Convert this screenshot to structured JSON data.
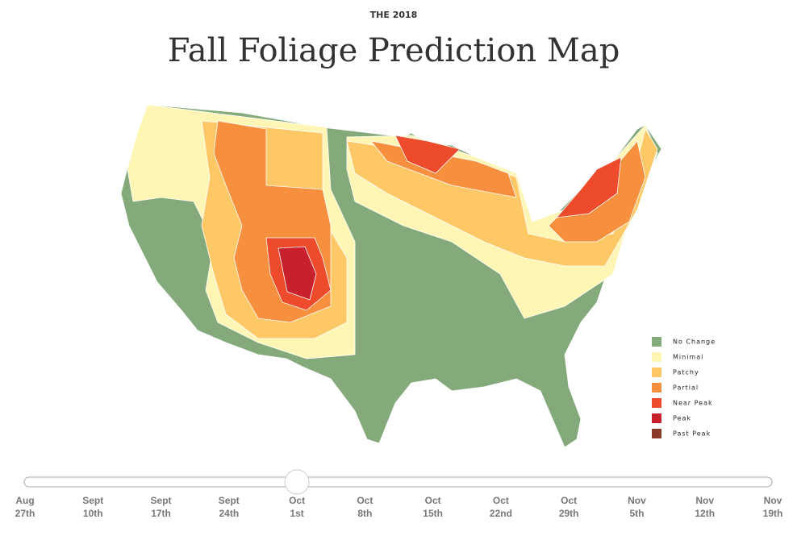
{
  "header": {
    "kicker": "THE 2018",
    "title": "Fall Foliage Prediction Map"
  },
  "legend": [
    {
      "name": "No Change",
      "color": "#84a97b"
    },
    {
      "name": "Minimal",
      "color": "#fff5b5"
    },
    {
      "name": "Patchy",
      "color": "#fdc865"
    },
    {
      "name": "Partial",
      "color": "#f6903f"
    },
    {
      "name": "Near Peak",
      "color": "#ed4b2c"
    },
    {
      "name": "Peak",
      "color": "#c8202c"
    },
    {
      "name": "Past Peak",
      "color": "#8b3a28"
    }
  ],
  "slider": {
    "selected": 4,
    "ticks": [
      {
        "month": "Aug",
        "day": "27th"
      },
      {
        "month": "Sept",
        "day": "10th"
      },
      {
        "month": "Sept",
        "day": "17th"
      },
      {
        "month": "Sept",
        "day": "24th"
      },
      {
        "month": "Oct",
        "day": "1st"
      },
      {
        "month": "Oct",
        "day": "8th"
      },
      {
        "month": "Oct",
        "day": "15th"
      },
      {
        "month": "Oct",
        "day": "22nd"
      },
      {
        "month": "Oct",
        "day": "29th"
      },
      {
        "month": "Nov",
        "day": "5th"
      },
      {
        "month": "Nov",
        "day": "12th"
      },
      {
        "month": "Nov",
        "day": "19th"
      }
    ]
  }
}
